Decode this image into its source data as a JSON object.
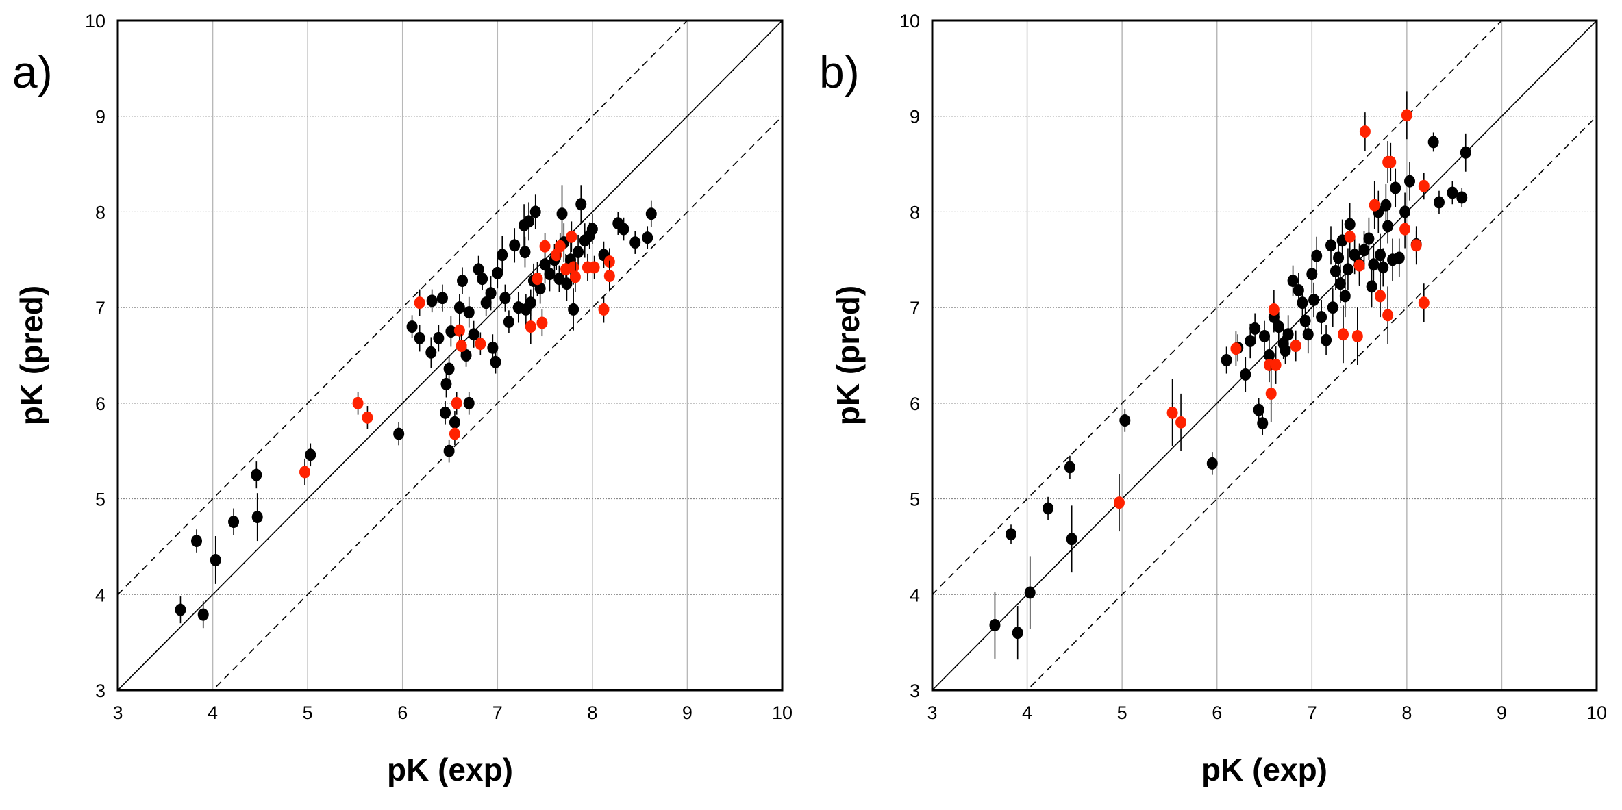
{
  "chart_data": [
    {
      "type": "scatter",
      "panel_label": "a)",
      "xlabel": "pK (exp)",
      "ylabel": "pK (pred)",
      "xlim": [
        3,
        10
      ],
      "ylim": [
        3,
        10
      ],
      "xticks": [
        "3",
        "4",
        "5",
        "6",
        "7",
        "8",
        "9",
        "10"
      ],
      "yticks": [
        "3",
        "4",
        "5",
        "6",
        "7",
        "8",
        "9",
        "10"
      ],
      "grid": true,
      "reference_lines": [
        {
          "kind": "identity",
          "style": "solid",
          "offset": 0
        },
        {
          "kind": "identity",
          "style": "dashed",
          "offset": 1
        },
        {
          "kind": "identity",
          "style": "dashed",
          "offset": -1
        }
      ],
      "series": [
        {
          "color": "#000000",
          "points": [
            [
              3.66,
              3.84,
              0.14
            ],
            [
              3.83,
              4.56,
              0.12
            ],
            [
              3.9,
              3.79,
              0.14
            ],
            [
              4.03,
              4.36,
              0.25
            ],
            [
              4.22,
              4.76,
              0.14
            ],
            [
              4.46,
              5.25,
              0.14
            ],
            [
              4.47,
              4.81,
              0.25
            ],
            [
              5.03,
              5.46,
              0.12
            ],
            [
              5.96,
              5.68,
              0.12
            ],
            [
              6.1,
              6.8,
              0.12
            ],
            [
              6.18,
              6.68,
              0.14
            ],
            [
              6.3,
              6.53,
              0.16
            ],
            [
              6.31,
              7.07,
              0.12
            ],
            [
              6.38,
              6.68,
              0.14
            ],
            [
              6.42,
              7.1,
              0.14
            ],
            [
              6.45,
              5.9,
              0.12
            ],
            [
              6.46,
              6.2,
              0.14
            ],
            [
              6.49,
              6.36,
              0.14
            ],
            [
              6.49,
              5.5,
              0.12
            ],
            [
              6.51,
              6.75,
              0.16
            ],
            [
              6.55,
              5.8,
              0.12
            ],
            [
              6.6,
              7.0,
              0.14
            ],
            [
              6.63,
              7.28,
              0.14
            ],
            [
              6.67,
              6.5,
              0.12
            ],
            [
              6.7,
              6.95,
              0.16
            ],
            [
              6.7,
              6.0,
              0.12
            ],
            [
              6.75,
              6.72,
              0.14
            ],
            [
              6.8,
              7.4,
              0.14
            ],
            [
              6.84,
              7.3,
              0.12
            ],
            [
              6.88,
              7.05,
              0.14
            ],
            [
              6.93,
              7.15,
              0.18
            ],
            [
              6.95,
              6.58,
              0.14
            ],
            [
              6.98,
              6.43,
              0.12
            ],
            [
              7.0,
              7.36,
              0.16
            ],
            [
              7.05,
              7.55,
              0.2
            ],
            [
              7.08,
              7.1,
              0.14
            ],
            [
              7.12,
              6.85,
              0.12
            ],
            [
              7.18,
              7.65,
              0.18
            ],
            [
              7.22,
              7.0,
              0.16
            ],
            [
              7.28,
              7.86,
              0.22
            ],
            [
              7.29,
              7.58,
              0.16
            ],
            [
              7.3,
              6.98,
              0.16
            ],
            [
              7.33,
              7.9,
              0.2
            ],
            [
              7.35,
              7.05,
              0.14
            ],
            [
              7.38,
              7.28,
              0.18
            ],
            [
              7.4,
              8.0,
              0.18
            ],
            [
              7.45,
              7.2,
              0.16
            ],
            [
              7.5,
              7.45,
              0.2
            ],
            [
              7.55,
              7.35,
              0.18
            ],
            [
              7.6,
              7.5,
              0.16
            ],
            [
              7.65,
              7.3,
              0.14
            ],
            [
              7.68,
              7.98,
              0.3
            ],
            [
              7.7,
              7.68,
              0.2
            ],
            [
              7.73,
              7.25,
              0.18
            ],
            [
              7.77,
              7.5,
              0.22
            ],
            [
              7.8,
              6.98,
              0.22
            ],
            [
              7.85,
              7.58,
              0.18
            ],
            [
              7.88,
              8.08,
              0.2
            ],
            [
              7.92,
              7.7,
              0.18
            ],
            [
              7.97,
              7.75,
              0.14
            ],
            [
              8.0,
              7.82,
              0.16
            ],
            [
              8.12,
              7.55,
              0.14
            ],
            [
              8.27,
              7.88,
              0.12
            ],
            [
              8.33,
              7.82,
              0.12
            ],
            [
              8.45,
              7.68,
              0.12
            ],
            [
              8.58,
              7.73,
              0.12
            ],
            [
              8.62,
              7.98,
              0.14
            ]
          ]
        },
        {
          "color": "#ff2200",
          "points": [
            [
              4.97,
              5.28,
              0.14
            ],
            [
              5.53,
              6.0,
              0.12
            ],
            [
              5.63,
              5.85,
              0.12
            ],
            [
              6.18,
              7.05,
              0.14
            ],
            [
              6.55,
              5.68,
              0.12
            ],
            [
              6.57,
              6.0,
              0.12
            ],
            [
              6.6,
              6.76,
              0.12
            ],
            [
              6.62,
              6.6,
              0.12
            ],
            [
              6.82,
              6.62,
              0.12
            ],
            [
              7.35,
              6.8,
              0.18
            ],
            [
              7.42,
              7.3,
              0.18
            ],
            [
              7.47,
              6.84,
              0.14
            ],
            [
              7.5,
              7.64,
              0.14
            ],
            [
              7.62,
              7.55,
              0.16
            ],
            [
              7.66,
              7.64,
              0.14
            ],
            [
              7.72,
              7.4,
              0.16
            ],
            [
              7.78,
              7.74,
              0.16
            ],
            [
              7.8,
              7.42,
              0.18
            ],
            [
              7.82,
              7.32,
              0.16
            ],
            [
              7.95,
              7.42,
              0.14
            ],
            [
              8.02,
              7.42,
              0.12
            ],
            [
              8.12,
              6.98,
              0.14
            ],
            [
              8.18,
              7.48,
              0.14
            ],
            [
              8.18,
              7.33,
              0.16
            ]
          ]
        }
      ]
    },
    {
      "type": "scatter",
      "panel_label": "b)",
      "xlabel": "pK (exp)",
      "ylabel": "pK (pred)",
      "xlim": [
        3,
        10
      ],
      "ylim": [
        3,
        10
      ],
      "xticks": [
        "3",
        "4",
        "5",
        "6",
        "7",
        "8",
        "9",
        "10"
      ],
      "yticks": [
        "3",
        "4",
        "5",
        "6",
        "7",
        "8",
        "9",
        "10"
      ],
      "grid": true,
      "reference_lines": [
        {
          "kind": "identity",
          "style": "solid",
          "offset": 0
        },
        {
          "kind": "identity",
          "style": "dashed",
          "offset": 1
        },
        {
          "kind": "identity",
          "style": "dashed",
          "offset": -1
        }
      ],
      "series": [
        {
          "color": "#000000",
          "points": [
            [
              3.66,
              3.68,
              0.35
            ],
            [
              3.83,
              4.63,
              0.1
            ],
            [
              3.9,
              3.6,
              0.28
            ],
            [
              4.03,
              4.02,
              0.38
            ],
            [
              4.22,
              4.9,
              0.12
            ],
            [
              4.45,
              5.33,
              0.12
            ],
            [
              4.47,
              4.58,
              0.35
            ],
            [
              5.03,
              5.82,
              0.12
            ],
            [
              5.95,
              5.37,
              0.12
            ],
            [
              6.1,
              6.45,
              0.14
            ],
            [
              6.22,
              6.58,
              0.14
            ],
            [
              6.3,
              6.3,
              0.18
            ],
            [
              6.35,
              6.65,
              0.18
            ],
            [
              6.4,
              6.78,
              0.16
            ],
            [
              6.44,
              5.93,
              0.12
            ],
            [
              6.48,
              5.79,
              0.12
            ],
            [
              6.5,
              6.7,
              0.16
            ],
            [
              6.55,
              6.5,
              0.18
            ],
            [
              6.6,
              6.9,
              0.16
            ],
            [
              6.65,
              6.8,
              0.16
            ],
            [
              6.7,
              6.62,
              0.16
            ],
            [
              6.72,
              6.55,
              0.14
            ],
            [
              6.75,
              6.72,
              0.2
            ],
            [
              6.8,
              7.28,
              0.16
            ],
            [
              6.83,
              6.6,
              0.14
            ],
            [
              6.86,
              7.18,
              0.18
            ],
            [
              6.9,
              7.05,
              0.16
            ],
            [
              6.93,
              6.86,
              0.16
            ],
            [
              6.96,
              6.72,
              0.2
            ],
            [
              7.0,
              7.35,
              0.2
            ],
            [
              7.02,
              7.08,
              0.18
            ],
            [
              7.05,
              7.54,
              0.2
            ],
            [
              7.1,
              6.9,
              0.18
            ],
            [
              7.15,
              6.66,
              0.16
            ],
            [
              7.2,
              7.65,
              0.2
            ],
            [
              7.22,
              7.0,
              0.2
            ],
            [
              7.25,
              7.38,
              0.2
            ],
            [
              7.28,
              7.52,
              0.22
            ],
            [
              7.3,
              7.25,
              0.2
            ],
            [
              7.32,
              7.7,
              0.22
            ],
            [
              7.35,
              7.12,
              0.22
            ],
            [
              7.38,
              7.4,
              0.22
            ],
            [
              7.4,
              7.87,
              0.22
            ],
            [
              7.45,
              7.55,
              0.2
            ],
            [
              7.5,
              7.45,
              0.22
            ],
            [
              7.55,
              7.6,
              0.2
            ],
            [
              7.6,
              7.72,
              0.22
            ],
            [
              7.63,
              7.22,
              0.22
            ],
            [
              7.65,
              7.45,
              0.22
            ],
            [
              7.7,
              8.0,
              0.22
            ],
            [
              7.72,
              7.55,
              0.22
            ],
            [
              7.75,
              7.42,
              0.2
            ],
            [
              7.78,
              8.07,
              0.22
            ],
            [
              7.8,
              7.85,
              0.18
            ],
            [
              7.85,
              7.5,
              0.22
            ],
            [
              7.88,
              8.25,
              0.2
            ],
            [
              7.92,
              7.52,
              0.2
            ],
            [
              7.98,
              8.0,
              0.2
            ],
            [
              8.03,
              8.32,
              0.2
            ],
            [
              8.1,
              7.66,
              0.14
            ],
            [
              8.28,
              8.73,
              0.1
            ],
            [
              8.34,
              8.1,
              0.12
            ],
            [
              8.48,
              8.2,
              0.12
            ],
            [
              8.58,
              8.15,
              0.1
            ],
            [
              8.62,
              8.62,
              0.2
            ]
          ]
        },
        {
          "color": "#ff2200",
          "points": [
            [
              4.97,
              4.96,
              0.3
            ],
            [
              5.53,
              5.9,
              0.35
            ],
            [
              5.62,
              5.8,
              0.3
            ],
            [
              6.2,
              6.57,
              0.18
            ],
            [
              6.55,
              6.4,
              0.18
            ],
            [
              6.57,
              6.1,
              0.3
            ],
            [
              6.6,
              6.98,
              0.2
            ],
            [
              6.62,
              6.4,
              0.2
            ],
            [
              6.83,
              6.6,
              0.16
            ],
            [
              7.33,
              6.72,
              0.3
            ],
            [
              7.4,
              7.74,
              0.2
            ],
            [
              7.48,
              6.7,
              0.3
            ],
            [
              7.5,
              7.44,
              0.2
            ],
            [
              7.56,
              8.84,
              0.2
            ],
            [
              7.66,
              8.07,
              0.25
            ],
            [
              7.72,
              7.12,
              0.22
            ],
            [
              7.8,
              6.92,
              0.3
            ],
            [
              7.8,
              8.52,
              0.22
            ],
            [
              7.83,
              8.52,
              0.2
            ],
            [
              7.98,
              7.82,
              0.2
            ],
            [
              8.0,
              9.01,
              0.25
            ],
            [
              8.1,
              7.65,
              0.2
            ],
            [
              8.18,
              8.27,
              0.14
            ],
            [
              8.18,
              7.05,
              0.2
            ]
          ]
        }
      ]
    }
  ]
}
